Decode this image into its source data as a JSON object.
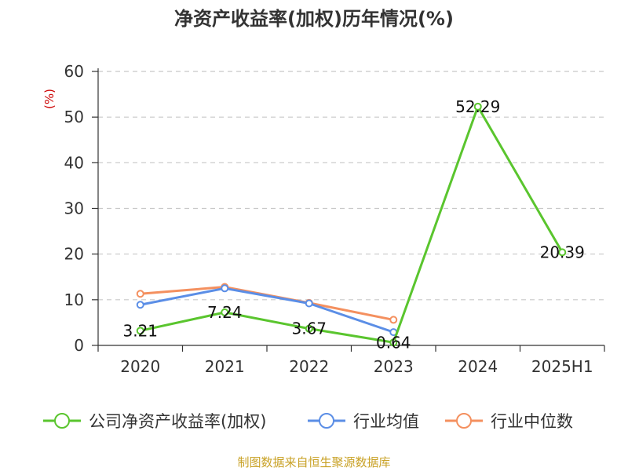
{
  "chart_data": {
    "type": "line",
    "title": "净资产收益率(加权)历年情况(%)",
    "ylabel": "(%)",
    "categories": [
      "2020",
      "2021",
      "2022",
      "2023",
      "2024",
      "2025H1"
    ],
    "ylim": [
      0,
      60
    ],
    "yticks": [
      "0",
      "10",
      "20",
      "30",
      "40",
      "50",
      "60"
    ],
    "grid": true,
    "legend_position": "bottom",
    "series": [
      {
        "name": "公司净资产收益率(加权)",
        "color": "#5ac52e",
        "values": [
          3.21,
          7.24,
          3.67,
          0.64,
          52.29,
          20.39
        ],
        "labels": [
          "3.21",
          "7.24",
          "3.67",
          "0.64",
          "52.29",
          "20.39"
        ]
      },
      {
        "name": "行业均值",
        "color": "#5b8ee6",
        "values": [
          8.9,
          12.5,
          9.2,
          2.9,
          null,
          null
        ]
      },
      {
        "name": "行业中位数",
        "color": "#f4905f",
        "values": [
          11.3,
          12.8,
          9.3,
          5.6,
          null,
          null
        ]
      }
    ]
  },
  "source": {
    "text": "制图数据来自恒生聚源数据库",
    "color": "#c9a227"
  },
  "ylabel_color": "#cc0000"
}
